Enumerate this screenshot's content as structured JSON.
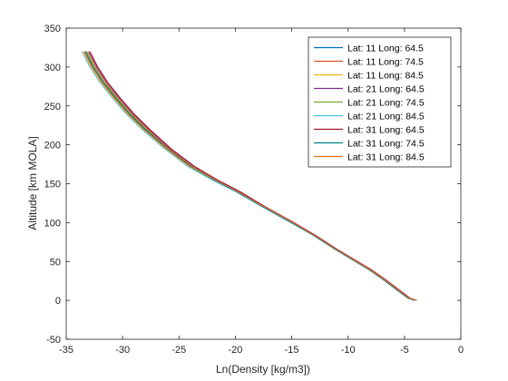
{
  "chart_data": {
    "type": "line",
    "xlabel": "Ln(Density [kg/m3])",
    "ylabel": "Altitude [km MOLA]",
    "xlim": [
      -35,
      0
    ],
    "ylim": [
      -50,
      350
    ],
    "xticks": [
      -35,
      -30,
      -25,
      -20,
      -15,
      -10,
      -5,
      0
    ],
    "yticks": [
      -50,
      0,
      50,
      100,
      150,
      200,
      250,
      300,
      350
    ],
    "grid": false,
    "legend_position": "top-right",
    "series": [
      {
        "name": "Lat: 11 Long: 64.5",
        "color": "#0072BD",
        "x": [
          -33.3,
          -32.6,
          -31.7,
          -30.6,
          -29.4,
          -28.0,
          -26.0,
          -23.9,
          -21.9,
          -19.9,
          -17.5,
          -15.0,
          -13.0,
          -11.2,
          -9.7,
          -8.2,
          -7.0,
          -5.8,
          -4.7,
          -4.1
        ],
        "y": [
          320,
          300,
          280,
          260,
          240,
          220,
          195,
          172,
          155,
          140,
          120,
          100,
          83,
          66,
          53,
          40,
          28,
          15,
          3,
          0
        ]
      },
      {
        "name": "Lat: 11 Long: 74.5",
        "color": "#D95319",
        "x": [
          -33.4,
          -32.7,
          -31.8,
          -30.7,
          -29.5,
          -28.1,
          -26.1,
          -24.0,
          -22.0,
          -19.9,
          -17.5,
          -15.0,
          -13.0,
          -11.2,
          -9.7,
          -8.2,
          -7.0,
          -5.8,
          -4.7,
          -4.1
        ],
        "y": [
          320,
          300,
          280,
          260,
          240,
          220,
          195,
          172,
          155,
          140,
          120,
          100,
          83,
          66,
          53,
          40,
          28,
          15,
          3,
          0
        ]
      },
      {
        "name": "Lat: 11 Long: 84.5",
        "color": "#EDB120",
        "x": [
          -33.5,
          -32.8,
          -31.9,
          -30.8,
          -29.6,
          -28.2,
          -26.2,
          -24.1,
          -22.0,
          -20.0,
          -17.6,
          -15.1,
          -13.0,
          -11.2,
          -9.7,
          -8.2,
          -7.0,
          -5.8,
          -4.7,
          -4.0
        ],
        "y": [
          320,
          300,
          280,
          260,
          240,
          220,
          195,
          172,
          155,
          140,
          120,
          100,
          83,
          66,
          53,
          40,
          28,
          15,
          3,
          0
        ]
      },
      {
        "name": "Lat: 21 Long: 64.5",
        "color": "#7E2F8E",
        "x": [
          -33.0,
          -32.3,
          -31.4,
          -30.3,
          -29.1,
          -27.7,
          -25.8,
          -23.7,
          -21.7,
          -19.7,
          -17.4,
          -14.9,
          -12.9,
          -11.1,
          -9.6,
          -8.1,
          -6.9,
          -5.7,
          -4.6,
          -4.0
        ],
        "y": [
          320,
          300,
          280,
          260,
          240,
          220,
          195,
          172,
          155,
          140,
          120,
          100,
          83,
          66,
          53,
          40,
          28,
          15,
          3,
          0
        ]
      },
      {
        "name": "Lat: 21 Long: 74.5",
        "color": "#77AC30",
        "x": [
          -33.2,
          -32.5,
          -31.6,
          -30.5,
          -29.3,
          -27.9,
          -25.9,
          -23.8,
          -21.8,
          -19.8,
          -17.5,
          -15.0,
          -13.0,
          -11.2,
          -9.7,
          -8.2,
          -7.0,
          -5.8,
          -4.7,
          -4.1
        ],
        "y": [
          320,
          300,
          280,
          260,
          240,
          220,
          195,
          172,
          155,
          140,
          120,
          100,
          83,
          66,
          53,
          40,
          28,
          15,
          3,
          0
        ]
      },
      {
        "name": "Lat: 21 Long: 84.5",
        "color": "#4DBEEE",
        "x": [
          -33.6,
          -32.9,
          -32.0,
          -30.9,
          -29.7,
          -28.3,
          -26.3,
          -24.2,
          -22.1,
          -20.0,
          -17.6,
          -15.1,
          -13.0,
          -11.2,
          -9.7,
          -8.2,
          -7.0,
          -5.8,
          -4.7,
          -4.0
        ],
        "y": [
          320,
          300,
          280,
          260,
          240,
          220,
          195,
          172,
          155,
          140,
          120,
          100,
          83,
          66,
          53,
          40,
          28,
          15,
          3,
          0
        ]
      },
      {
        "name": "Lat: 31 Long: 64.5",
        "color": "#A2142F",
        "x": [
          -32.9,
          -32.2,
          -31.3,
          -30.2,
          -29.0,
          -27.6,
          -25.7,
          -23.6,
          -21.6,
          -19.6,
          -17.3,
          -14.8,
          -12.8,
          -11.0,
          -9.5,
          -8.0,
          -6.8,
          -5.6,
          -4.5,
          -3.9
        ],
        "y": [
          320,
          300,
          280,
          260,
          240,
          220,
          195,
          172,
          155,
          140,
          120,
          100,
          83,
          66,
          53,
          40,
          28,
          15,
          3,
          0
        ]
      },
      {
        "name": "Lat: 31 Long: 74.5",
        "color": "#00848C",
        "x": [
          -33.3,
          -32.6,
          -31.7,
          -30.6,
          -29.4,
          -28.0,
          -26.0,
          -23.9,
          -21.9,
          -19.9,
          -17.5,
          -15.0,
          -13.0,
          -11.2,
          -9.7,
          -8.2,
          -7.0,
          -5.8,
          -4.7,
          -4.1
        ],
        "y": [
          320,
          300,
          280,
          260,
          240,
          220,
          195,
          172,
          155,
          140,
          120,
          100,
          83,
          66,
          53,
          40,
          28,
          15,
          3,
          0
        ]
      },
      {
        "name": "Lat: 31 Long: 84.5",
        "color": "#E8702A",
        "x": [
          -33.1,
          -32.4,
          -31.5,
          -30.4,
          -29.2,
          -27.8,
          -25.9,
          -23.8,
          -21.8,
          -19.8,
          -17.4,
          -14.9,
          -12.9,
          -11.1,
          -9.6,
          -8.1,
          -6.9,
          -5.7,
          -4.6,
          -3.9
        ],
        "y": [
          320,
          300,
          280,
          260,
          240,
          220,
          195,
          172,
          155,
          140,
          120,
          100,
          83,
          66,
          53,
          40,
          28,
          15,
          3,
          0
        ]
      }
    ]
  }
}
